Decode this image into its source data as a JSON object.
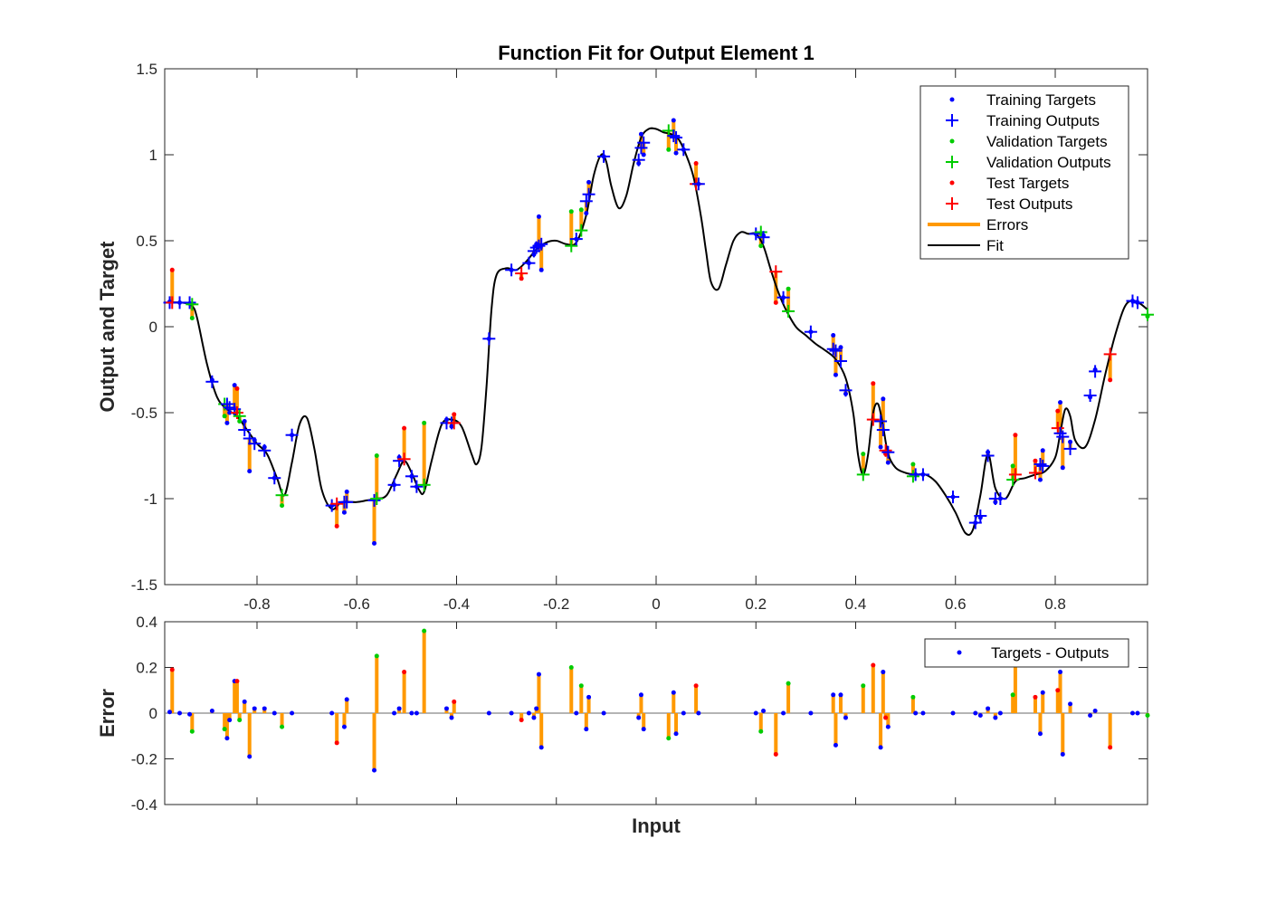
{
  "chart_data": [
    {
      "type": "scatter",
      "title": "Function Fit for Output Element 1",
      "xlabel": "",
      "ylabel": "Output and Target",
      "xlim": [
        -0.985,
        0.985
      ],
      "ylim": [
        -1.5,
        1.5
      ],
      "xticks": [
        -0.8,
        -0.6,
        -0.4,
        -0.2,
        0,
        0.2,
        0.4,
        0.6,
        0.8
      ],
      "xtick_labels": [
        "-0.8",
        "-0.6",
        "-0.4",
        "-0.2",
        "0",
        "0.2",
        "0.4",
        "0.6",
        "0.8"
      ],
      "yticks": [
        -1.5,
        -1,
        -0.5,
        0,
        0.5,
        1,
        1.5
      ],
      "ytick_labels": [
        "-1.5",
        "-1",
        "-0.5",
        "0",
        "0.5",
        "1",
        "1.5"
      ],
      "legend_position": "top-right",
      "legend": [
        "Training Targets",
        "Training Outputs",
        "Validation Targets",
        "Validation Outputs",
        "Test Targets",
        "Test Outputs",
        "Errors",
        "Fit"
      ],
      "colors": {
        "training": "#0000ff",
        "validation": "#00cc00",
        "test": "#ff0000",
        "errors": "#ff9900",
        "fit": "#000000"
      },
      "fit": {
        "x": [
          -0.985,
          -0.95,
          -0.93,
          -0.92,
          -0.9,
          -0.88,
          -0.86,
          -0.84,
          -0.82,
          -0.8,
          -0.78,
          -0.76,
          -0.745,
          -0.73,
          -0.715,
          -0.7,
          -0.685,
          -0.67,
          -0.65,
          -0.63,
          -0.6,
          -0.58,
          -0.56,
          -0.54,
          -0.52,
          -0.505,
          -0.49,
          -0.475,
          -0.465,
          -0.45,
          -0.43,
          -0.41,
          -0.39,
          -0.37,
          -0.36,
          -0.35,
          -0.34,
          -0.33,
          -0.32,
          -0.3,
          -0.28,
          -0.26,
          -0.24,
          -0.22,
          -0.2,
          -0.18,
          -0.16,
          -0.14,
          -0.125,
          -0.11,
          -0.1,
          -0.09,
          -0.075,
          -0.06,
          -0.045,
          -0.03,
          -0.015,
          0,
          0.015,
          0.03,
          0.045,
          0.06,
          0.075,
          0.09,
          0.1,
          0.11,
          0.125,
          0.14,
          0.155,
          0.17,
          0.185,
          0.2,
          0.215,
          0.23,
          0.245,
          0.26,
          0.28,
          0.3,
          0.32,
          0.34,
          0.36,
          0.38,
          0.395,
          0.405,
          0.415,
          0.425,
          0.435,
          0.445,
          0.455,
          0.465,
          0.48,
          0.5,
          0.52,
          0.54,
          0.56,
          0.58,
          0.6,
          0.62,
          0.635,
          0.65,
          0.665,
          0.68,
          0.7,
          0.72,
          0.74,
          0.76,
          0.78,
          0.8,
          0.81,
          0.82,
          0.83,
          0.84,
          0.86,
          0.88,
          0.9,
          0.92,
          0.94,
          0.96,
          0.985
        ],
        "y": [
          0.14,
          0.14,
          0.12,
          0.05,
          -0.22,
          -0.41,
          -0.48,
          -0.52,
          -0.6,
          -0.68,
          -0.74,
          -0.88,
          -0.98,
          -0.79,
          -0.57,
          -0.53,
          -0.71,
          -0.95,
          -1.06,
          -1.02,
          -1.02,
          -1.01,
          -1.0,
          -0.98,
          -0.86,
          -0.78,
          -0.85,
          -0.95,
          -0.96,
          -0.78,
          -0.57,
          -0.54,
          -0.58,
          -0.74,
          -0.8,
          -0.7,
          -0.35,
          0.1,
          0.3,
          0.34,
          0.33,
          0.38,
          0.45,
          0.49,
          0.5,
          0.48,
          0.49,
          0.65,
          0.88,
          1.0,
          0.96,
          0.82,
          0.69,
          0.76,
          0.95,
          1.1,
          1.15,
          1.15,
          1.13,
          1.12,
          1.09,
          1.0,
          0.87,
          0.64,
          0.44,
          0.26,
          0.22,
          0.36,
          0.5,
          0.55,
          0.54,
          0.54,
          0.47,
          0.33,
          0.2,
          0.1,
          0.0,
          -0.05,
          -0.1,
          -0.14,
          -0.19,
          -0.3,
          -0.5,
          -0.75,
          -0.86,
          -0.74,
          -0.5,
          -0.45,
          -0.58,
          -0.74,
          -0.82,
          -0.85,
          -0.86,
          -0.86,
          -0.9,
          -0.98,
          -1.08,
          -1.2,
          -1.18,
          -0.98,
          -0.74,
          -0.94,
          -1.0,
          -0.9,
          -0.88,
          -0.86,
          -0.84,
          -0.76,
          -0.62,
          -0.48,
          -0.52,
          -0.66,
          -0.7,
          -0.54,
          -0.28,
          -0.05,
          0.12,
          0.15,
          0.1
        ]
      },
      "points": [
        {
          "set": "training",
          "x": -0.975,
          "target": 0.145,
          "output": 0.14
        },
        {
          "set": "test",
          "x": -0.97,
          "target": 0.33,
          "output": 0.14
        },
        {
          "set": "training",
          "x": -0.955,
          "target": 0.14,
          "output": 0.14
        },
        {
          "set": "training",
          "x": -0.935,
          "target": 0.135,
          "output": 0.14
        },
        {
          "set": "validation",
          "x": -0.93,
          "target": 0.05,
          "output": 0.13
        },
        {
          "set": "training",
          "x": -0.89,
          "target": -0.31,
          "output": -0.32
        },
        {
          "set": "validation",
          "x": -0.865,
          "target": -0.52,
          "output": -0.45
        },
        {
          "set": "training",
          "x": -0.86,
          "target": -0.56,
          "output": -0.45
        },
        {
          "set": "training",
          "x": -0.855,
          "target": -0.5,
          "output": -0.47
        },
        {
          "set": "training",
          "x": -0.845,
          "target": -0.34,
          "output": -0.48
        },
        {
          "set": "test",
          "x": -0.84,
          "target": -0.36,
          "output": -0.5
        },
        {
          "set": "validation",
          "x": -0.835,
          "target": -0.55,
          "output": -0.52
        },
        {
          "set": "training",
          "x": -0.825,
          "target": -0.55,
          "output": -0.6
        },
        {
          "set": "training",
          "x": -0.815,
          "target": -0.84,
          "output": -0.65
        },
        {
          "set": "training",
          "x": -0.805,
          "target": -0.66,
          "output": -0.68
        },
        {
          "set": "training",
          "x": -0.785,
          "target": -0.7,
          "output": -0.72
        },
        {
          "set": "training",
          "x": -0.765,
          "target": -0.88,
          "output": -0.88
        },
        {
          "set": "validation",
          "x": -0.75,
          "target": -1.04,
          "output": -0.98
        },
        {
          "set": "training",
          "x": -0.73,
          "target": -0.63,
          "output": -0.63
        },
        {
          "set": "training",
          "x": -0.65,
          "target": -1.04,
          "output": -1.04
        },
        {
          "set": "test",
          "x": -0.64,
          "target": -1.16,
          "output": -1.03
        },
        {
          "set": "training",
          "x": -0.625,
          "target": -1.08,
          "output": -1.02
        },
        {
          "set": "training",
          "x": -0.62,
          "target": -0.96,
          "output": -1.02
        },
        {
          "set": "training",
          "x": -0.565,
          "target": -1.26,
          "output": -1.01
        },
        {
          "set": "validation",
          "x": -0.56,
          "target": -0.75,
          "output": -1.0
        },
        {
          "set": "training",
          "x": -0.525,
          "target": -0.92,
          "output": -0.92
        },
        {
          "set": "training",
          "x": -0.515,
          "target": -0.76,
          "output": -0.78
        },
        {
          "set": "test",
          "x": -0.505,
          "target": -0.59,
          "output": -0.77
        },
        {
          "set": "training",
          "x": -0.49,
          "target": -0.87,
          "output": -0.87
        },
        {
          "set": "training",
          "x": -0.48,
          "target": -0.93,
          "output": -0.93
        },
        {
          "set": "validation",
          "x": -0.465,
          "target": -0.56,
          "output": -0.92
        },
        {
          "set": "training",
          "x": -0.42,
          "target": -0.54,
          "output": -0.56
        },
        {
          "set": "training",
          "x": -0.41,
          "target": -0.58,
          "output": -0.56
        },
        {
          "set": "test",
          "x": -0.405,
          "target": -0.51,
          "output": -0.56
        },
        {
          "set": "training",
          "x": -0.335,
          "target": -0.07,
          "output": -0.07
        },
        {
          "set": "training",
          "x": -0.29,
          "target": 0.33,
          "output": 0.33
        },
        {
          "set": "test",
          "x": -0.27,
          "target": 0.28,
          "output": 0.31
        },
        {
          "set": "training",
          "x": -0.255,
          "target": 0.37,
          "output": 0.37
        },
        {
          "set": "training",
          "x": -0.245,
          "target": 0.42,
          "output": 0.44
        },
        {
          "set": "training",
          "x": -0.24,
          "target": 0.48,
          "output": 0.46
        },
        {
          "set": "training",
          "x": -0.235,
          "target": 0.64,
          "output": 0.47
        },
        {
          "set": "training",
          "x": -0.23,
          "target": 0.33,
          "output": 0.48
        },
        {
          "set": "validation",
          "x": -0.17,
          "target": 0.67,
          "output": 0.47
        },
        {
          "set": "training",
          "x": -0.16,
          "target": 0.51,
          "output": 0.51
        },
        {
          "set": "validation",
          "x": -0.15,
          "target": 0.68,
          "output": 0.56
        },
        {
          "set": "training",
          "x": -0.14,
          "target": 0.66,
          "output": 0.73
        },
        {
          "set": "training",
          "x": -0.135,
          "target": 0.84,
          "output": 0.77
        },
        {
          "set": "training",
          "x": -0.105,
          "target": 0.99,
          "output": 0.99
        },
        {
          "set": "training",
          "x": -0.035,
          "target": 0.95,
          "output": 0.97
        },
        {
          "set": "training",
          "x": -0.03,
          "target": 1.12,
          "output": 1.04
        },
        {
          "set": "training",
          "x": -0.025,
          "target": 1.0,
          "output": 1.07
        },
        {
          "set": "validation",
          "x": 0.025,
          "target": 1.03,
          "output": 1.14
        },
        {
          "set": "training",
          "x": 0.035,
          "target": 1.2,
          "output": 1.11
        },
        {
          "set": "training",
          "x": 0.04,
          "target": 1.01,
          "output": 1.1
        },
        {
          "set": "training",
          "x": 0.055,
          "target": 1.03,
          "output": 1.03
        },
        {
          "set": "test",
          "x": 0.08,
          "target": 0.95,
          "output": 0.83
        },
        {
          "set": "training",
          "x": 0.085,
          "target": 0.83,
          "output": 0.83
        },
        {
          "set": "training",
          "x": 0.2,
          "target": 0.54,
          "output": 0.54
        },
        {
          "set": "validation",
          "x": 0.21,
          "target": 0.47,
          "output": 0.55
        },
        {
          "set": "training",
          "x": 0.215,
          "target": 0.53,
          "output": 0.52
        },
        {
          "set": "test",
          "x": 0.24,
          "target": 0.14,
          "output": 0.32
        },
        {
          "set": "training",
          "x": 0.255,
          "target": 0.17,
          "output": 0.17
        },
        {
          "set": "validation",
          "x": 0.265,
          "target": 0.22,
          "output": 0.09
        },
        {
          "set": "training",
          "x": 0.31,
          "target": -0.03,
          "output": -0.03
        },
        {
          "set": "training",
          "x": 0.355,
          "target": -0.05,
          "output": -0.13
        },
        {
          "set": "training",
          "x": 0.36,
          "target": -0.28,
          "output": -0.14
        },
        {
          "set": "training",
          "x": 0.37,
          "target": -0.12,
          "output": -0.2
        },
        {
          "set": "training",
          "x": 0.38,
          "target": -0.39,
          "output": -0.37
        },
        {
          "set": "validation",
          "x": 0.415,
          "target": -0.74,
          "output": -0.86
        },
        {
          "set": "test",
          "x": 0.435,
          "target": -0.33,
          "output": -0.54
        },
        {
          "set": "training",
          "x": 0.45,
          "target": -0.7,
          "output": -0.55
        },
        {
          "set": "training",
          "x": 0.455,
          "target": -0.42,
          "output": -0.6
        },
        {
          "set": "test",
          "x": 0.46,
          "target": -0.74,
          "output": -0.72
        },
        {
          "set": "training",
          "x": 0.465,
          "target": -0.79,
          "output": -0.73
        },
        {
          "set": "validation",
          "x": 0.515,
          "target": -0.8,
          "output": -0.87
        },
        {
          "set": "training",
          "x": 0.52,
          "target": -0.86,
          "output": -0.86
        },
        {
          "set": "training",
          "x": 0.535,
          "target": -0.86,
          "output": -0.86
        },
        {
          "set": "training",
          "x": 0.595,
          "target": -0.99,
          "output": -0.99
        },
        {
          "set": "training",
          "x": 0.64,
          "target": -1.14,
          "output": -1.14
        },
        {
          "set": "training",
          "x": 0.65,
          "target": -1.11,
          "output": -1.1
        },
        {
          "set": "training",
          "x": 0.665,
          "target": -0.73,
          "output": -0.75
        },
        {
          "set": "training",
          "x": 0.68,
          "target": -1.02,
          "output": -1.0
        },
        {
          "set": "training",
          "x": 0.69,
          "target": -1.0,
          "output": -1.0
        },
        {
          "set": "validation",
          "x": 0.715,
          "target": -0.81,
          "output": -0.89
        },
        {
          "set": "test",
          "x": 0.72,
          "target": -0.63,
          "output": -0.86
        },
        {
          "set": "test",
          "x": 0.76,
          "target": -0.78,
          "output": -0.85
        },
        {
          "set": "training",
          "x": 0.77,
          "target": -0.89,
          "output": -0.8
        },
        {
          "set": "training",
          "x": 0.775,
          "target": -0.72,
          "output": -0.81
        },
        {
          "set": "test",
          "x": 0.805,
          "target": -0.49,
          "output": -0.59
        },
        {
          "set": "training",
          "x": 0.81,
          "target": -0.44,
          "output": -0.62
        },
        {
          "set": "training",
          "x": 0.815,
          "target": -0.82,
          "output": -0.64
        },
        {
          "set": "training",
          "x": 0.83,
          "target": -0.67,
          "output": -0.71
        },
        {
          "set": "training",
          "x": 0.87,
          "target": -0.41,
          "output": -0.4
        },
        {
          "set": "training",
          "x": 0.88,
          "target": -0.25,
          "output": -0.26
        },
        {
          "set": "test",
          "x": 0.91,
          "target": -0.31,
          "output": -0.16
        },
        {
          "set": "training",
          "x": 0.955,
          "target": 0.15,
          "output": 0.15
        },
        {
          "set": "training",
          "x": 0.965,
          "target": 0.14,
          "output": 0.14
        },
        {
          "set": "validation",
          "x": 0.985,
          "target": 0.06,
          "output": 0.07
        }
      ]
    },
    {
      "type": "stem",
      "title": "",
      "xlabel": "Input",
      "ylabel": "Error",
      "xlim": [
        -0.985,
        0.985
      ],
      "ylim": [
        -0.4,
        0.4
      ],
      "yticks": [
        -0.4,
        -0.2,
        0,
        0.2,
        0.4
      ],
      "ytick_labels": [
        "-0.4",
        "-0.2",
        "0",
        "0.2",
        "0.4"
      ],
      "legend_position": "top-right",
      "legend": [
        "Targets - Outputs"
      ],
      "note": "error = target - output for each point of chart 1"
    }
  ]
}
